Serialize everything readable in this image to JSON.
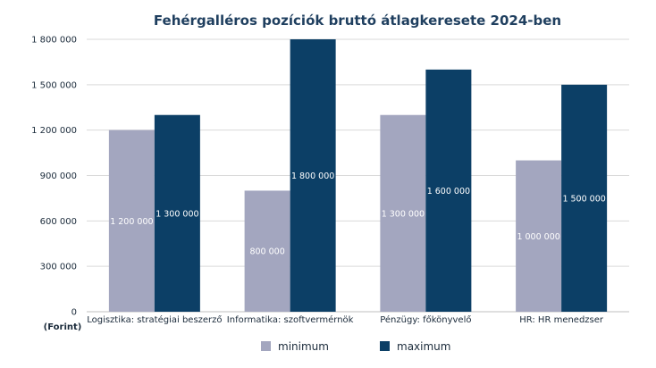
{
  "chart_data": {
    "type": "bar",
    "title": "Fehérgalléros pozíciók bruttó átlagkeresete 2024-ben",
    "unit_label": "(Forint)",
    "categories": [
      "Logisztika: stratégiai beszerző",
      "Informatika: szoftvermérnök",
      "Pénzügy: főkönyvelő",
      "HR: HR menedzser"
    ],
    "series": [
      {
        "name": "minimum",
        "values": [
          1200000,
          800000,
          1300000,
          1000000
        ],
        "labels": [
          "1 200 000",
          "800 000",
          "1 300 000",
          "1 000 000"
        ],
        "color": "#a3a6bf"
      },
      {
        "name": "maximum",
        "values": [
          1300000,
          1800000,
          1600000,
          1500000
        ],
        "labels": [
          "1 300 000",
          "1 800 000",
          "1 600 000",
          "1 500 000"
        ],
        "color": "#0c3f66"
      }
    ],
    "ylim": [
      0,
      1800000
    ],
    "yticks": [
      0,
      300000,
      600000,
      900000,
      1200000,
      1500000,
      1800000
    ],
    "ytick_labels": [
      "0",
      "300 000",
      "600 000",
      "900 000",
      "1 200 000",
      "1 500 000",
      "1 800 000"
    ],
    "grid": true,
    "legend_position": "bottom"
  }
}
